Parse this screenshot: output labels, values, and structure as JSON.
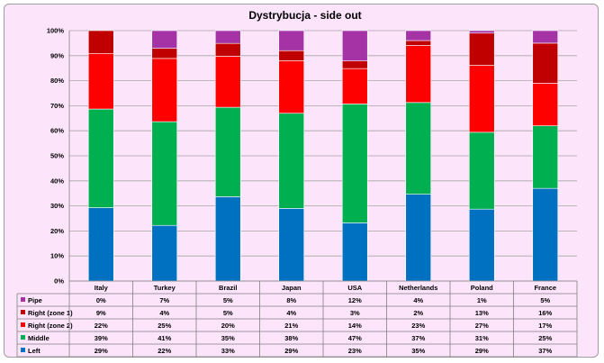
{
  "chart_data": {
    "type": "bar",
    "stacked": true,
    "title": "Dystrybucja - side out",
    "categories": [
      "Italy",
      "Turkey",
      "Brazil",
      "Japan",
      "USA",
      "Netherlands",
      "Poland",
      "France"
    ],
    "ylim": [
      0,
      100
    ],
    "yticks": [
      "0%",
      "10%",
      "20%",
      "30%",
      "40%",
      "50%",
      "60%",
      "70%",
      "80%",
      "90%",
      "100%"
    ],
    "grid": true,
    "legend": "table-below",
    "series": [
      {
        "name": "Left",
        "color": "#0070c0",
        "values": [
          29,
          22,
          33,
          29,
          23,
          35,
          29,
          37
        ],
        "labels": [
          "29%",
          "22%",
          "33%",
          "29%",
          "23%",
          "35%",
          "29%",
          "37%"
        ]
      },
      {
        "name": "Middle",
        "color": "#00b050",
        "values": [
          39,
          41,
          35,
          38,
          47,
          37,
          31,
          25
        ],
        "labels": [
          "39%",
          "41%",
          "35%",
          "38%",
          "47%",
          "37%",
          "31%",
          "25%"
        ]
      },
      {
        "name": "Right (zone 2)",
        "color": "#ff0000",
        "values": [
          22,
          25,
          20,
          21,
          14,
          23,
          27,
          17
        ],
        "labels": [
          "22%",
          "25%",
          "20%",
          "21%",
          "14%",
          "23%",
          "27%",
          "17%"
        ]
      },
      {
        "name": "Right (zone 1)",
        "color": "#c00000",
        "values": [
          9,
          4,
          5,
          4,
          3,
          2,
          13,
          16
        ],
        "labels": [
          "9%",
          "4%",
          "5%",
          "4%",
          "3%",
          "2%",
          "13%",
          "16%"
        ]
      },
      {
        "name": "Pipe",
        "color": "#a533a5",
        "values": [
          0,
          7,
          5,
          8,
          12,
          4,
          1,
          5
        ],
        "labels": [
          "0%",
          "7%",
          "5%",
          "8%",
          "12%",
          "4%",
          "1%",
          "5%"
        ]
      }
    ]
  }
}
